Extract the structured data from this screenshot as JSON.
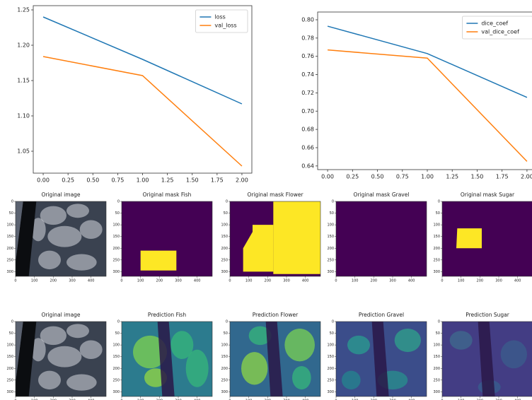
{
  "chart_data": [
    {
      "type": "line",
      "x": [
        0,
        1,
        2
      ],
      "series": [
        {
          "name": "loss",
          "color": "#1f77b4",
          "values": [
            1.24,
            1.18,
            1.117
          ]
        },
        {
          "name": "val_loss",
          "color": "#ff7f0e",
          "values": [
            1.184,
            1.157,
            1.029
          ]
        }
      ],
      "xlim": [
        -0.1,
        2.1
      ],
      "ylim": [
        1.019,
        1.256
      ],
      "xticks": [
        {
          "value": 0,
          "label": "0.00"
        },
        0.25,
        {
          "value": 0.5,
          "label": "0.50"
        },
        0.75,
        {
          "value": 1,
          "label": "1.00"
        },
        1.25,
        {
          "value": 1.5,
          "label": "1.50"
        },
        1.75,
        {
          "value": 2,
          "label": "2.00"
        }
      ],
      "yticks": [
        1.05,
        {
          "value": 1.1,
          "label": "1.10"
        },
        1.15,
        {
          "value": 1.2,
          "label": "1.20"
        },
        1.25
      ],
      "legend": "upper right"
    },
    {
      "type": "line",
      "x": [
        0,
        1,
        2
      ],
      "series": [
        {
          "name": "dice_coef",
          "color": "#1f77b4",
          "values": [
            0.793,
            0.763,
            0.715
          ]
        },
        {
          "name": "val_dice_coef",
          "color": "#ff7f0e",
          "values": [
            0.767,
            0.758,
            0.645
          ]
        }
      ],
      "xlim": [
        -0.1,
        2.1
      ],
      "ylim": [
        0.636,
        0.8085
      ],
      "xticks": [
        {
          "value": 0,
          "label": "0.00"
        },
        0.25,
        {
          "value": 0.5,
          "label": "0.50"
        },
        0.75,
        {
          "value": 1,
          "label": "1.00"
        },
        1.25,
        {
          "value": 1.5,
          "label": "1.50"
        },
        1.75,
        {
          "value": 2,
          "label": "2.00"
        }
      ],
      "yticks": [
        0.64,
        0.66,
        0.68,
        {
          "value": 0.7,
          "label": "0.70"
        },
        0.72,
        0.74,
        0.76,
        0.78,
        {
          "value": 0.8,
          "label": "0.80"
        }
      ],
      "legend": "upper right"
    }
  ],
  "image_grid": {
    "xticks": [
      0,
      100,
      200,
      300,
      400
    ],
    "yticks": [
      0,
      50,
      100,
      150,
      200,
      250,
      300
    ],
    "rows": [
      {
        "titles": [
          "Original image",
          "Original mask Fish",
          "Original mask Flower",
          "Original mask Gravel",
          "Original mask Sugar"
        ]
      },
      {
        "titles": [
          "Original image",
          "Prediction Fish",
          "Prediction Flower",
          "Prediction Gravel",
          "Prediction Sugar"
        ]
      }
    ]
  }
}
